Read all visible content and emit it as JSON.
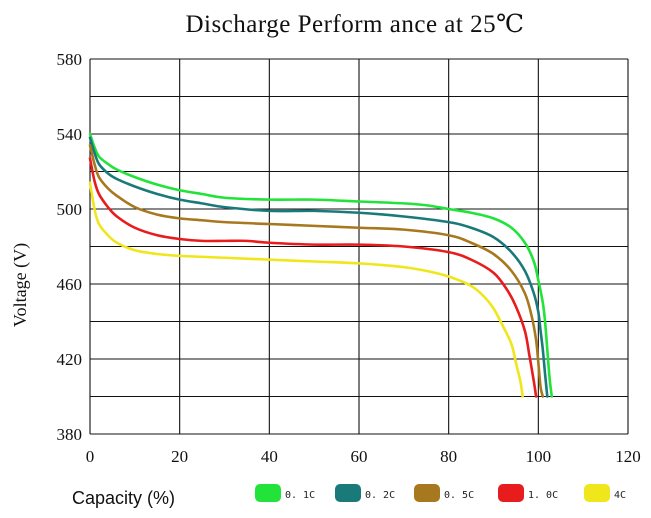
{
  "chart_data": {
    "type": "line",
    "title": "Discharge  Perform ance  at  25℃",
    "xlabel": "Capacity (%)",
    "ylabel": "Voltage (V)",
    "xlim": [
      0,
      120
    ],
    "ylim": [
      380,
      580
    ],
    "x_ticks": [
      "0",
      "20",
      "40",
      "60",
      "80",
      "100",
      "120"
    ],
    "y_ticks": [
      "380",
      "420",
      "460",
      "500",
      "540",
      "580"
    ],
    "grid": true,
    "legend_position": "bottom",
    "series": [
      {
        "name": "0. 1C",
        "color": "#22e33a",
        "points": [
          [
            0,
            540
          ],
          [
            1,
            533
          ],
          [
            2,
            528
          ],
          [
            4,
            524
          ],
          [
            6,
            521
          ],
          [
            10,
            517
          ],
          [
            15,
            513
          ],
          [
            20,
            510
          ],
          [
            25,
            508
          ],
          [
            30,
            506
          ],
          [
            40,
            505
          ],
          [
            50,
            505
          ],
          [
            60,
            504
          ],
          [
            70,
            503
          ],
          [
            75,
            502
          ],
          [
            80,
            500
          ],
          [
            85,
            498
          ],
          [
            90,
            495
          ],
          [
            94,
            490
          ],
          [
            97,
            482
          ],
          [
            99,
            472
          ],
          [
            100,
            462
          ],
          [
            101,
            450
          ],
          [
            101.5,
            440
          ],
          [
            102,
            425
          ],
          [
            102.5,
            410
          ],
          [
            103,
            400
          ]
        ]
      },
      {
        "name": "0. 2C",
        "color": "#1a7a7a",
        "points": [
          [
            0,
            538
          ],
          [
            1,
            530
          ],
          [
            2,
            524
          ],
          [
            4,
            519
          ],
          [
            6,
            516
          ],
          [
            10,
            512
          ],
          [
            15,
            508
          ],
          [
            20,
            505
          ],
          [
            25,
            503
          ],
          [
            30,
            501
          ],
          [
            40,
            499
          ],
          [
            50,
            499
          ],
          [
            60,
            498
          ],
          [
            70,
            496
          ],
          [
            80,
            493
          ],
          [
            85,
            490
          ],
          [
            90,
            485
          ],
          [
            94,
            477
          ],
          [
            97,
            467
          ],
          [
            99,
            455
          ],
          [
            100,
            445
          ],
          [
            100.5,
            435
          ],
          [
            101,
            425
          ],
          [
            101.5,
            412
          ],
          [
            102,
            400
          ]
        ]
      },
      {
        "name": "0. 5C",
        "color": "#a8781e",
        "points": [
          [
            0,
            534
          ],
          [
            1,
            524
          ],
          [
            2,
            517
          ],
          [
            4,
            511
          ],
          [
            6,
            507
          ],
          [
            10,
            501
          ],
          [
            15,
            497
          ],
          [
            20,
            495
          ],
          [
            25,
            494
          ],
          [
            30,
            493
          ],
          [
            40,
            492
          ],
          [
            50,
            491
          ],
          [
            60,
            490
          ],
          [
            70,
            489
          ],
          [
            80,
            486
          ],
          [
            85,
            482
          ],
          [
            90,
            476
          ],
          [
            94,
            467
          ],
          [
            97,
            455
          ],
          [
            98.5,
            443
          ],
          [
            99.5,
            430
          ],
          [
            100,
            418
          ],
          [
            100.5,
            405
          ],
          [
            101,
            400
          ]
        ]
      },
      {
        "name": "1. 0C",
        "color": "#e81c1c",
        "points": [
          [
            0,
            527
          ],
          [
            1,
            515
          ],
          [
            2,
            508
          ],
          [
            4,
            501
          ],
          [
            6,
            496
          ],
          [
            10,
            490
          ],
          [
            15,
            486
          ],
          [
            20,
            484
          ],
          [
            25,
            483
          ],
          [
            30,
            483
          ],
          [
            35,
            483
          ],
          [
            40,
            482
          ],
          [
            50,
            481
          ],
          [
            60,
            481
          ],
          [
            70,
            480
          ],
          [
            80,
            477
          ],
          [
            85,
            473
          ],
          [
            90,
            466
          ],
          [
            93,
            457
          ],
          [
            95,
            448
          ],
          [
            97,
            435
          ],
          [
            98,
            422
          ],
          [
            99,
            408
          ],
          [
            99.5,
            400
          ]
        ]
      },
      {
        "name": "4C",
        "color": "#f0e61c",
        "points": [
          [
            0,
            514
          ],
          [
            1,
            500
          ],
          [
            2,
            492
          ],
          [
            4,
            486
          ],
          [
            6,
            482
          ],
          [
            10,
            478
          ],
          [
            15,
            476
          ],
          [
            20,
            475
          ],
          [
            30,
            474
          ],
          [
            40,
            473
          ],
          [
            50,
            472
          ],
          [
            60,
            471
          ],
          [
            70,
            469
          ],
          [
            75,
            467
          ],
          [
            80,
            464
          ],
          [
            85,
            459
          ],
          [
            88,
            453
          ],
          [
            90,
            447
          ],
          [
            92,
            438
          ],
          [
            94,
            428
          ],
          [
            95,
            418
          ],
          [
            96,
            408
          ],
          [
            96.5,
            400
          ]
        ]
      }
    ]
  }
}
